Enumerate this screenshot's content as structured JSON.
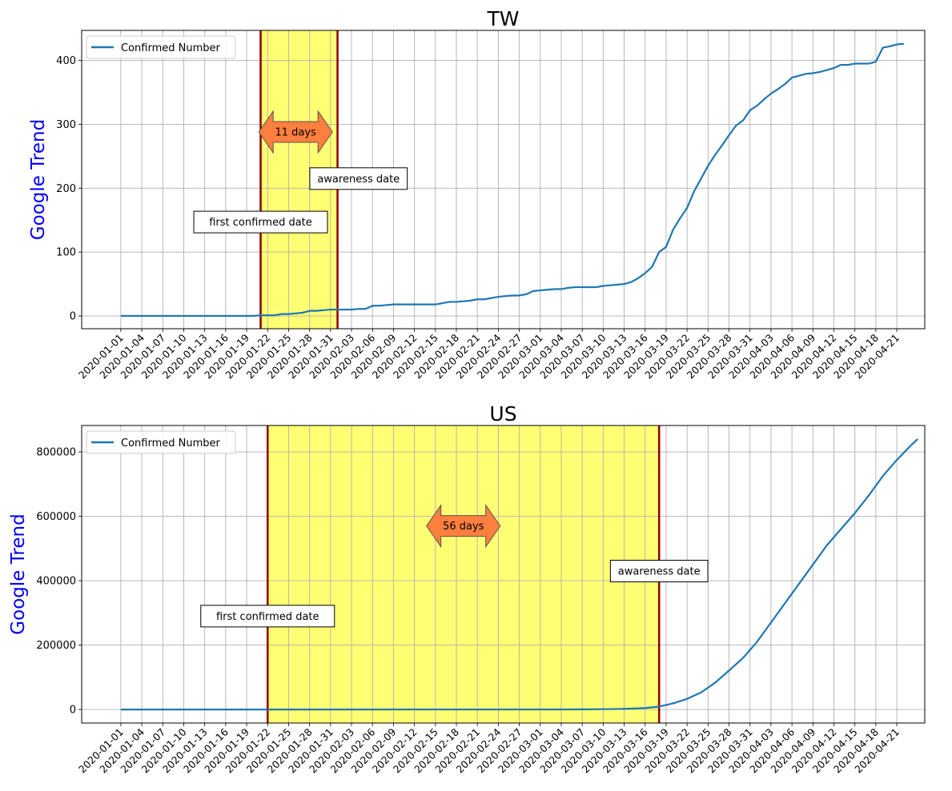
{
  "chart_data": [
    {
      "type": "line",
      "title": "TW",
      "xlabel": "",
      "ylabel": "Google Trend",
      "ylabel_color": "#0000ff",
      "ylim": [
        -20,
        447
      ],
      "yticks": [
        0,
        100,
        200,
        300,
        400
      ],
      "x_start": "2020-01-01",
      "x_end": "2020-04-25",
      "xtick_labels": [
        "2020-01-01",
        "2020-01-04",
        "2020-01-07",
        "2020-01-10",
        "2020-01-13",
        "2020-01-16",
        "2020-01-19",
        "2020-01-22",
        "2020-01-25",
        "2020-01-28",
        "2020-01-31",
        "2020-02-03",
        "2020-02-06",
        "2020-02-09",
        "2020-02-12",
        "2020-02-15",
        "2020-02-18",
        "2020-02-21",
        "2020-02-24",
        "2020-02-27",
        "2020-03-01",
        "2020-03-04",
        "2020-03-07",
        "2020-03-10",
        "2020-03-13",
        "2020-03-16",
        "2020-03-19",
        "2020-03-22",
        "2020-03-25",
        "2020-03-28",
        "2020-03-31",
        "2020-04-03",
        "2020-04-06",
        "2020-04-09",
        "2020-04-12",
        "2020-04-15",
        "2020-04-18",
        "2020-04-21"
      ],
      "grid": true,
      "legend": {
        "position": "top-left",
        "entries": [
          "Confirmed Number"
        ]
      },
      "series": [
        {
          "name": "Confirmed Number",
          "color": "#1f77b4",
          "points": [
            [
              "2020-01-01",
              0
            ],
            [
              "2020-01-20",
              0
            ],
            [
              "2020-01-21",
              1
            ],
            [
              "2020-01-22",
              1
            ],
            [
              "2020-01-23",
              1
            ],
            [
              "2020-01-24",
              3
            ],
            [
              "2020-01-25",
              3
            ],
            [
              "2020-01-26",
              4
            ],
            [
              "2020-01-27",
              5
            ],
            [
              "2020-01-28",
              8
            ],
            [
              "2020-01-29",
              8
            ],
            [
              "2020-01-30",
              9
            ],
            [
              "2020-01-31",
              10
            ],
            [
              "2020-02-01",
              10
            ],
            [
              "2020-02-02",
              10
            ],
            [
              "2020-02-03",
              10
            ],
            [
              "2020-02-04",
              11
            ],
            [
              "2020-02-05",
              11
            ],
            [
              "2020-02-06",
              16
            ],
            [
              "2020-02-07",
              16
            ],
            [
              "2020-02-08",
              17
            ],
            [
              "2020-02-09",
              18
            ],
            [
              "2020-02-10",
              18
            ],
            [
              "2020-02-15",
              18
            ],
            [
              "2020-02-16",
              20
            ],
            [
              "2020-02-17",
              22
            ],
            [
              "2020-02-18",
              22
            ],
            [
              "2020-02-19",
              23
            ],
            [
              "2020-02-20",
              24
            ],
            [
              "2020-02-21",
              26
            ],
            [
              "2020-02-22",
              26
            ],
            [
              "2020-02-23",
              28
            ],
            [
              "2020-02-24",
              30
            ],
            [
              "2020-02-25",
              31
            ],
            [
              "2020-02-26",
              32
            ],
            [
              "2020-02-27",
              32
            ],
            [
              "2020-02-28",
              34
            ],
            [
              "2020-02-29",
              39
            ],
            [
              "2020-03-01",
              40
            ],
            [
              "2020-03-02",
              41
            ],
            [
              "2020-03-03",
              42
            ],
            [
              "2020-03-04",
              42
            ],
            [
              "2020-03-05",
              44
            ],
            [
              "2020-03-06",
              45
            ],
            [
              "2020-03-07",
              45
            ],
            [
              "2020-03-08",
              45
            ],
            [
              "2020-03-09",
              45
            ],
            [
              "2020-03-10",
              47
            ],
            [
              "2020-03-11",
              48
            ],
            [
              "2020-03-12",
              49
            ],
            [
              "2020-03-13",
              50
            ],
            [
              "2020-03-14",
              53
            ],
            [
              "2020-03-15",
              59
            ],
            [
              "2020-03-16",
              67
            ],
            [
              "2020-03-17",
              77
            ],
            [
              "2020-03-18",
              100
            ],
            [
              "2020-03-19",
              108
            ],
            [
              "2020-03-20",
              135
            ],
            [
              "2020-03-21",
              153
            ],
            [
              "2020-03-22",
              169
            ],
            [
              "2020-03-23",
              195
            ],
            [
              "2020-03-24",
              215
            ],
            [
              "2020-03-25",
              235
            ],
            [
              "2020-03-26",
              252
            ],
            [
              "2020-03-27",
              267
            ],
            [
              "2020-03-28",
              283
            ],
            [
              "2020-03-29",
              298
            ],
            [
              "2020-03-30",
              306
            ],
            [
              "2020-03-31",
              322
            ],
            [
              "2020-04-01",
              329
            ],
            [
              "2020-04-02",
              339
            ],
            [
              "2020-04-03",
              348
            ],
            [
              "2020-04-04",
              355
            ],
            [
              "2020-04-05",
              363
            ],
            [
              "2020-04-06",
              373
            ],
            [
              "2020-04-07",
              376
            ],
            [
              "2020-04-08",
              379
            ],
            [
              "2020-04-09",
              380
            ],
            [
              "2020-04-10",
              382
            ],
            [
              "2020-04-11",
              385
            ],
            [
              "2020-04-12",
              388
            ],
            [
              "2020-04-13",
              393
            ],
            [
              "2020-04-14",
              393
            ],
            [
              "2020-04-15",
              395
            ],
            [
              "2020-04-16",
              395
            ],
            [
              "2020-04-17",
              395
            ],
            [
              "2020-04-18",
              398
            ],
            [
              "2020-04-19",
              420
            ],
            [
              "2020-04-20",
              422
            ],
            [
              "2020-04-21",
              425
            ],
            [
              "2020-04-22",
              426
            ]
          ]
        }
      ],
      "shaded_span": {
        "start": "2020-01-21",
        "end": "2020-02-01",
        "fill": "#ffff00",
        "edge": "#8b0000"
      },
      "annotations": [
        {
          "text": "11 days",
          "x": "2020-01-26",
          "y": 288,
          "style": "double-arrow",
          "fill": "#ff7f3f"
        },
        {
          "text": "awareness date",
          "x": "2020-02-04",
          "y": 215,
          "style": "box"
        },
        {
          "text": "first confirmed date",
          "x": "2020-01-21",
          "y": 147,
          "style": "box"
        }
      ]
    },
    {
      "type": "line",
      "title": "US",
      "xlabel": "",
      "ylabel": "Google Trend",
      "ylabel_color": "#0000ff",
      "ylim": [
        -42000,
        882000
      ],
      "yticks": [
        0,
        200000,
        400000,
        600000,
        800000
      ],
      "x_start": "2020-01-01",
      "x_end": "2020-04-25",
      "xtick_labels": [
        "2020-01-01",
        "2020-01-04",
        "2020-01-07",
        "2020-01-10",
        "2020-01-13",
        "2020-01-16",
        "2020-01-19",
        "2020-01-22",
        "2020-01-25",
        "2020-01-28",
        "2020-01-31",
        "2020-02-03",
        "2020-02-06",
        "2020-02-09",
        "2020-02-12",
        "2020-02-15",
        "2020-02-18",
        "2020-02-21",
        "2020-02-24",
        "2020-02-27",
        "2020-03-01",
        "2020-03-04",
        "2020-03-07",
        "2020-03-10",
        "2020-03-13",
        "2020-03-16",
        "2020-03-19",
        "2020-03-22",
        "2020-03-25",
        "2020-03-28",
        "2020-03-31",
        "2020-04-03",
        "2020-04-06",
        "2020-04-09",
        "2020-04-12",
        "2020-04-15",
        "2020-04-18",
        "2020-04-21"
      ],
      "grid": true,
      "legend": {
        "position": "top-left",
        "entries": [
          "Confirmed Number"
        ]
      },
      "series": [
        {
          "name": "Confirmed Number",
          "color": "#1f77b4",
          "points": [
            [
              "2020-01-01",
              0
            ],
            [
              "2020-01-22",
              1
            ],
            [
              "2020-02-15",
              15
            ],
            [
              "2020-03-01",
              75
            ],
            [
              "2020-03-05",
              200
            ],
            [
              "2020-03-08",
              500
            ],
            [
              "2020-03-10",
              1000
            ],
            [
              "2020-03-12",
              1600
            ],
            [
              "2020-03-14",
              2700
            ],
            [
              "2020-03-16",
              4600
            ],
            [
              "2020-03-18",
              9000
            ],
            [
              "2020-03-20",
              19000
            ],
            [
              "2020-03-22",
              33000
            ],
            [
              "2020-03-24",
              53000
            ],
            [
              "2020-03-26",
              83000
            ],
            [
              "2020-03-28",
              121000
            ],
            [
              "2020-03-30",
              160000
            ],
            [
              "2020-04-01",
              210000
            ],
            [
              "2020-04-03",
              270000
            ],
            [
              "2020-04-05",
              330000
            ],
            [
              "2020-04-07",
              390000
            ],
            [
              "2020-04-09",
              450000
            ],
            [
              "2020-04-11",
              510000
            ],
            [
              "2020-04-13",
              560000
            ],
            [
              "2020-04-15",
              610000
            ],
            [
              "2020-04-17",
              665000
            ],
            [
              "2020-04-19",
              725000
            ],
            [
              "2020-04-21",
              775000
            ],
            [
              "2020-04-23",
              820000
            ],
            [
              "2020-04-24",
              840000
            ]
          ]
        }
      ],
      "shaded_span": {
        "start": "2020-01-22",
        "end": "2020-03-18",
        "fill": "#ffff00",
        "edge": "#8b0000"
      },
      "annotations": [
        {
          "text": "56 days",
          "x": "2020-02-19",
          "y": 570000,
          "style": "double-arrow",
          "fill": "#ff7f3f"
        },
        {
          "text": "awareness date",
          "x": "2020-03-18",
          "y": 430000,
          "style": "box"
        },
        {
          "text": "first confirmed date",
          "x": "2020-01-22",
          "y": 290000,
          "style": "box"
        }
      ]
    }
  ]
}
